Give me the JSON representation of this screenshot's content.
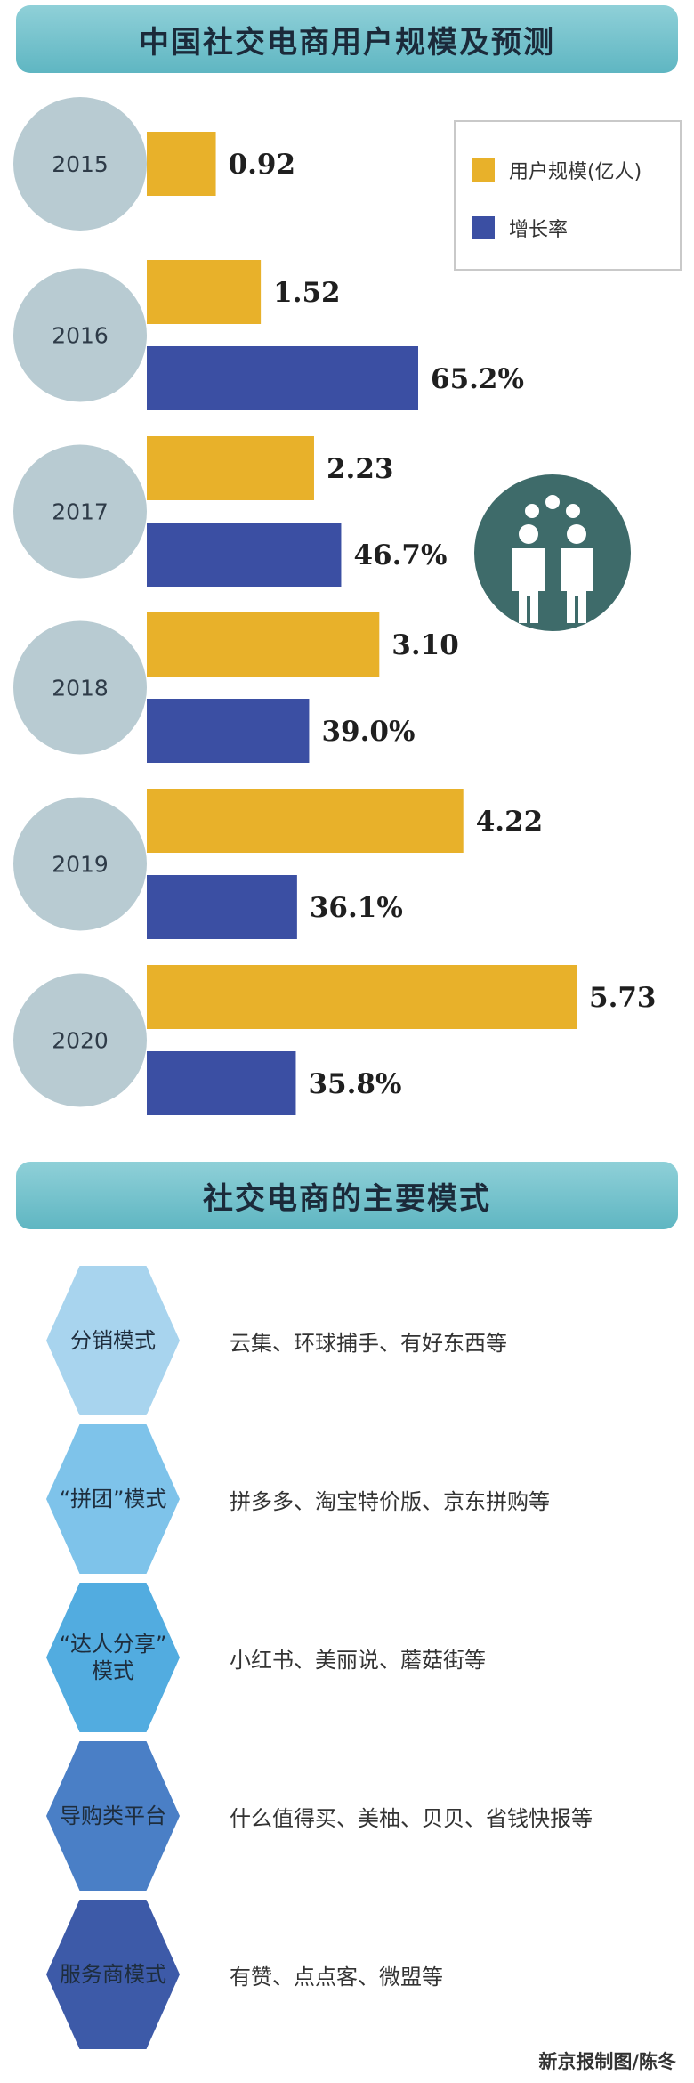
{
  "header1": "中国社交电商用户规模及预测",
  "header2": "社交电商的主要模式",
  "credit": "新京报制图/陈冬",
  "legend": [
    {
      "label": "用户规模(亿人)",
      "color": "#e8b12a"
    },
    {
      "label": "增长率",
      "color": "#3b4fa3"
    }
  ],
  "chart_data": {
    "type": "bar",
    "orientation": "horizontal",
    "categories": [
      "2015",
      "2016",
      "2017",
      "2018",
      "2019",
      "2020"
    ],
    "series": [
      {
        "name": "用户规模(亿人)",
        "values": [
          0.92,
          1.52,
          2.23,
          3.1,
          4.22,
          5.73
        ],
        "labels": [
          "0.92",
          "1.52",
          "2.23",
          "3.10",
          "4.22",
          "5.73"
        ],
        "color": "#e8b12a"
      },
      {
        "name": "增长率",
        "values": [
          null,
          65.2,
          46.7,
          39.0,
          36.1,
          35.8
        ],
        "labels": [
          "",
          "65.2%",
          "46.7%",
          "39.0%",
          "36.1%",
          "35.8%"
        ],
        "color": "#3b4fa3"
      }
    ]
  },
  "modes": [
    {
      "name": "分销模式",
      "desc": "云集、环球捕手、有好东西等",
      "color": "#a8d4ee"
    },
    {
      "name": "“拼团”模式",
      "desc": "拼多多、淘宝特价版、京东拼购等",
      "color": "#7ec3ea"
    },
    {
      "name": "“达人分享”\n模式",
      "desc": "小红书、美丽说、蘑菇街等",
      "color": "#52ace0"
    },
    {
      "name": "导购类平台",
      "desc": "什么值得买、美柚、贝贝、省钱快报等",
      "color": "#4a7fc6"
    },
    {
      "name": "服务商模式",
      "desc": "有赞、点点客、微盟等",
      "color": "#3d5aa8"
    }
  ],
  "icon": "people-group-icon"
}
